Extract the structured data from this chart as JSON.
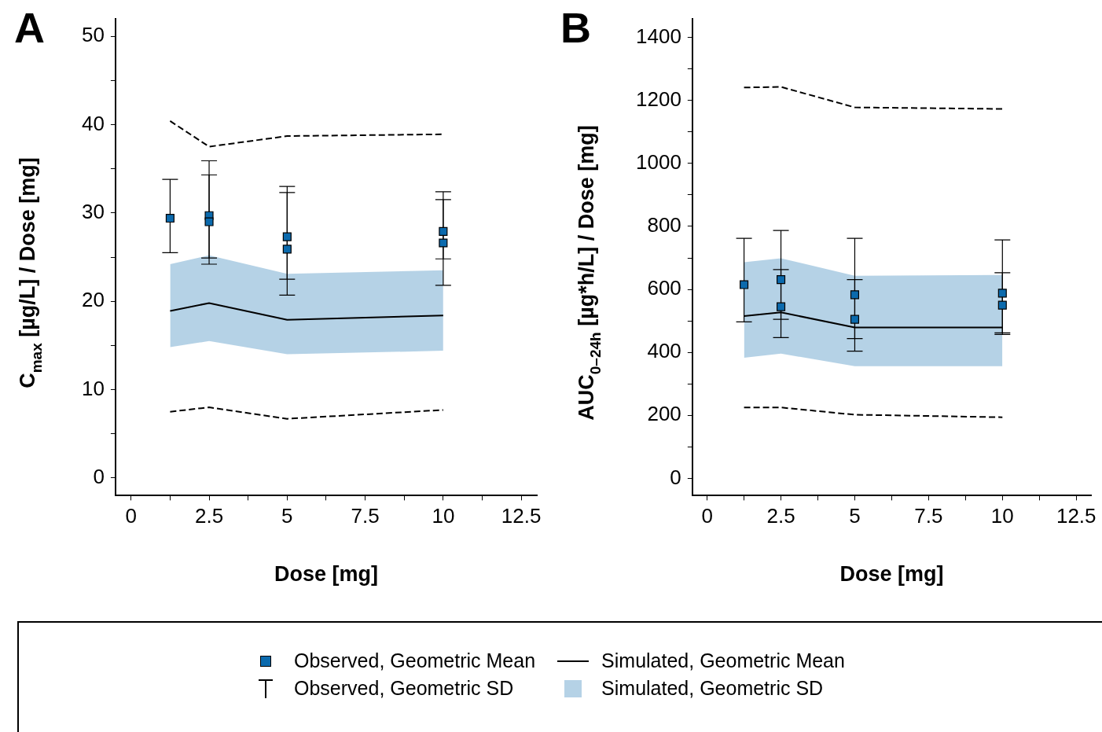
{
  "chart_data": [
    {
      "type": "line",
      "title": "A",
      "xlabel": "Dose [mg]",
      "ylabel": "C$_{max}$ [µg/L] / Dose [mg]",
      "xlim": [
        -0.5,
        13
      ],
      "xticks": [
        0,
        {
          "value": 1.25,
          "label": null
        },
        2.5,
        {
          "value": 3.75,
          "label": null
        },
        5,
        {
          "value": 6.25,
          "label": null
        },
        7.5,
        {
          "value": 8.75,
          "label": null
        },
        10,
        {
          "value": 11.25,
          "label": null
        },
        12.5
      ],
      "ylim": [
        -2,
        52
      ],
      "yticks": [
        0,
        {
          "value": 5,
          "label": null
        },
        10,
        {
          "value": 15,
          "label": null
        },
        20,
        {
          "value": 25,
          "label": null
        },
        30,
        {
          "value": 35,
          "label": null
        },
        40,
        {
          "value": 45,
          "label": null
        },
        50
      ],
      "legend": "bottom",
      "annotations": [
        "Observed, Geometric SD",
        "Simulated, Geometric SD"
      ],
      "series": [
        {
          "type": "scatter",
          "name": "Observed, Geometric Mean",
          "color": "#0b6aad",
          "marker": "square",
          "x": [
            1.25,
            2.5,
            2.5,
            5,
            5,
            10,
            10
          ],
          "values": [
            29.4,
            29.7,
            29.0,
            27.3,
            25.9,
            27.9,
            26.6
          ],
          "errors": [
            [
              25.5,
              33.8
            ],
            [
              24.2,
              35.9
            ],
            [
              24.9,
              34.3
            ],
            [
              22.5,
              33.0
            ],
            [
              20.7,
              32.3
            ],
            [
              24.8,
              32.4
            ],
            [
              21.8,
              31.5
            ]
          ]
        },
        {
          "type": "line",
          "name": "Simulated, Geometric Mean",
          "color": "#000000",
          "marker": "none",
          "line_style": "solid",
          "x": [
            1.25,
            2.5,
            5,
            10
          ],
          "values": [
            18.9,
            19.8,
            17.9,
            18.4
          ],
          "lower": [
            14.8,
            15.5,
            14.0,
            14.4
          ],
          "upper": [
            24.2,
            25.2,
            23.1,
            23.5
          ]
        },
        {
          "type": "line",
          "color": "#000000",
          "marker": "none",
          "line_style": "dashed",
          "x": [
            1.25,
            2.5,
            5,
            10
          ],
          "values": [
            40.4,
            37.5,
            38.7,
            38.9
          ]
        },
        {
          "type": "line",
          "color": "#000000",
          "marker": "none",
          "line_style": "dashed",
          "x": [
            1.25,
            2.5,
            5,
            10
          ],
          "values": [
            7.5,
            8.0,
            6.7,
            7.7
          ]
        }
      ]
    },
    {
      "type": "line",
      "title": "B",
      "xlabel": "Dose [mg]",
      "ylabel": "AUC$_{0–24h}$ [µg*h/L] / Dose [mg]",
      "xlim": [
        -0.5,
        13
      ],
      "xticks": [
        0,
        {
          "value": 1.25,
          "label": null
        },
        2.5,
        {
          "value": 3.75,
          "label": null
        },
        5,
        {
          "value": 6.25,
          "label": null
        },
        7.5,
        {
          "value": 8.75,
          "label": null
        },
        10,
        {
          "value": 11.25,
          "label": null
        },
        12.5
      ],
      "ylim": [
        -55,
        1460
      ],
      "yticks": [
        0,
        {
          "value": 100,
          "label": null
        },
        200,
        {
          "value": 300,
          "label": null
        },
        400,
        {
          "value": 500,
          "label": null
        },
        600,
        {
          "value": 700,
          "label": null
        },
        800,
        {
          "value": 900,
          "label": null
        },
        1000,
        {
          "value": 1100,
          "label": null
        },
        1200,
        {
          "value": 1300,
          "label": null
        },
        1400
      ],
      "series": [
        {
          "type": "scatter",
          "color": "#0b6aad",
          "marker": "square",
          "x": [
            1.25,
            2.5,
            2.5,
            5,
            5,
            10,
            10
          ],
          "values": [
            615,
            631,
            545,
            583,
            505,
            588,
            550
          ],
          "errors": [
            [
              497,
              762
            ],
            [
              505,
              787
            ],
            [
              447,
              663
            ],
            [
              444,
              762
            ],
            [
              404,
              631
            ],
            [
              457,
              757
            ],
            [
              462,
              653
            ]
          ]
        },
        {
          "type": "line",
          "color": "#000000",
          "marker": "none",
          "line_style": "solid",
          "x": [
            1.25,
            2.5,
            5,
            10
          ],
          "values": [
            515,
            527,
            479,
            479
          ],
          "lower": [
            383,
            396,
            356,
            356
          ],
          "upper": [
            686,
            699,
            643,
            646
          ]
        },
        {
          "type": "line",
          "color": "#000000",
          "marker": "none",
          "line_style": "dashed",
          "x": [
            1.25,
            2.5,
            5,
            10
          ],
          "values": [
            1241,
            1243,
            1178,
            1173
          ]
        },
        {
          "type": "line",
          "color": "#000000",
          "marker": "none",
          "line_style": "dashed",
          "x": [
            1.25,
            2.5,
            5,
            10
          ],
          "values": [
            225,
            225,
            202,
            194
          ]
        }
      ]
    }
  ]
}
